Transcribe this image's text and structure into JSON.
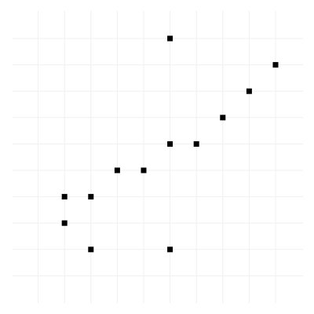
{
  "chart_data": {
    "type": "scatter",
    "title": "",
    "xlabel": "",
    "ylabel": "",
    "grid": true,
    "xlim": [
      0,
      11
    ],
    "ylim": [
      0,
      11
    ],
    "series": [
      {
        "points": [
          [
            6,
            10
          ],
          [
            10,
            9
          ],
          [
            9,
            8
          ],
          [
            8,
            7
          ],
          [
            6,
            6
          ],
          [
            7,
            6
          ],
          [
            4,
            5
          ],
          [
            5,
            5
          ],
          [
            2,
            4
          ],
          [
            3,
            4
          ],
          [
            2,
            3
          ],
          [
            3,
            2
          ],
          [
            6,
            2
          ]
        ]
      }
    ],
    "colors": {
      "point": "#000000",
      "grid": "#f0f0f0",
      "background": "#ffffff"
    }
  }
}
